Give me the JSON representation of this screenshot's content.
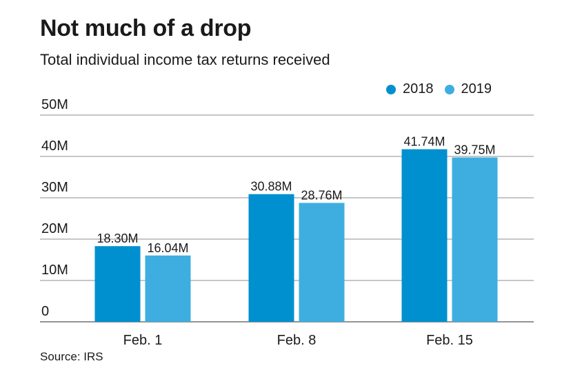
{
  "chart_data": {
    "type": "bar",
    "title": "Not much of a drop",
    "subtitle": "Total individual income tax returns received",
    "categories": [
      "Feb. 1",
      "Feb. 8",
      "Feb. 15"
    ],
    "series": [
      {
        "name": "2018",
        "values": [
          18.3,
          30.88,
          41.74
        ],
        "labels": [
          "18.30M",
          "30.88M",
          "41.74M"
        ],
        "color": "#0090cf"
      },
      {
        "name": "2019",
        "values": [
          16.04,
          28.76,
          39.75
        ],
        "labels": [
          "16.04M",
          "28.76M",
          "39.75M"
        ],
        "color": "#3eaee0"
      }
    ],
    "yticks": [
      0,
      10,
      20,
      30,
      40,
      50
    ],
    "ytick_labels": [
      "0",
      "10M",
      "20M",
      "30M",
      "40M",
      "50M"
    ],
    "ylim": [
      0,
      50
    ],
    "xlabel": "",
    "ylabel": "",
    "legend_position": "top-right",
    "grid": true,
    "source": "Source: IRS"
  }
}
